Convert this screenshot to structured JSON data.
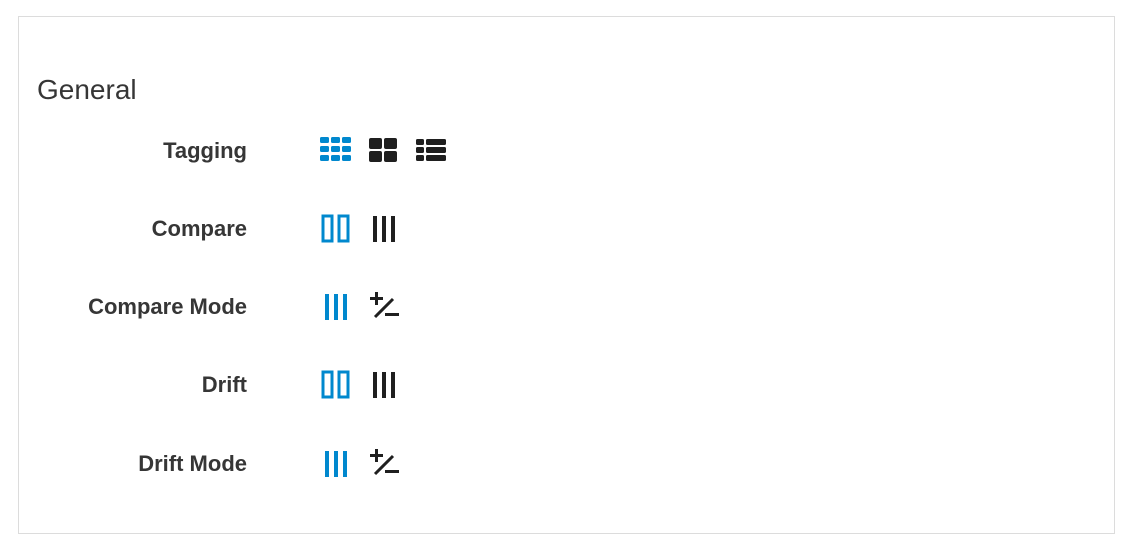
{
  "section": {
    "title": "General"
  },
  "colors": {
    "active": "#0088ce",
    "inactive": "#1f1f1f",
    "text": "#363636",
    "border": "#dcdcdc"
  },
  "rows": [
    {
      "label": "Tagging",
      "icons": [
        {
          "name": "tile-view-icon",
          "active": true
        },
        {
          "name": "grid-view-icon",
          "active": false
        },
        {
          "name": "list-view-icon",
          "active": false
        }
      ]
    },
    {
      "label": "Compare",
      "icons": [
        {
          "name": "expanded-columns-icon",
          "active": true
        },
        {
          "name": "compressed-columns-icon",
          "active": false
        }
      ]
    },
    {
      "label": "Compare Mode",
      "icons": [
        {
          "name": "details-columns-icon",
          "active": true
        },
        {
          "name": "exists-mode-icon",
          "active": false
        }
      ]
    },
    {
      "label": "Drift",
      "icons": [
        {
          "name": "expanded-columns-icon",
          "active": true
        },
        {
          "name": "compressed-columns-icon",
          "active": false
        }
      ]
    },
    {
      "label": "Drift Mode",
      "icons": [
        {
          "name": "details-columns-icon",
          "active": true
        },
        {
          "name": "exists-mode-icon",
          "active": false
        }
      ]
    }
  ]
}
